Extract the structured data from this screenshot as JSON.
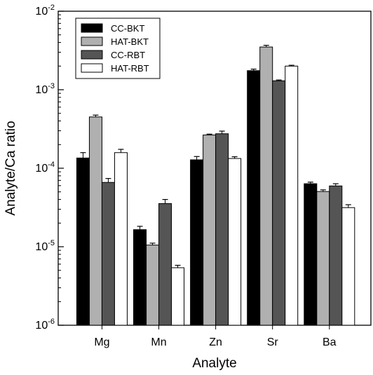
{
  "chart_data": {
    "type": "bar",
    "xlabel": "Analyte",
    "ylabel": "Analyte/Ca ratio",
    "yscale": "log",
    "ylim": [
      1e-06,
      0.01
    ],
    "y_ticks": [
      {
        "value": 1e-06,
        "base": "10",
        "exp": "-6"
      },
      {
        "value": 1e-05,
        "base": "10",
        "exp": "-5"
      },
      {
        "value": 0.0001,
        "base": "10",
        "exp": "-4"
      },
      {
        "value": 0.001,
        "base": "10",
        "exp": "-3"
      },
      {
        "value": 0.01,
        "base": "10",
        "exp": "-2"
      }
    ],
    "categories": [
      "Mg",
      "Mn",
      "Zn",
      "Sr",
      "Ba"
    ],
    "legend_position": "top-left",
    "series": [
      {
        "name": "CC-BKT",
        "color": "#000000",
        "values": [
          0.000135,
          1.65e-05,
          0.000128,
          0.00175,
          6.35e-05
        ],
        "errors": [
          2.3e-05,
          1.7e-06,
          1.3e-05,
          8e-05,
          3e-06
        ]
      },
      {
        "name": "HAT-BKT",
        "color": "#b0b0b0",
        "values": [
          0.00045,
          1.05e-05,
          0.000265,
          0.0035,
          5.05e-05
        ],
        "errors": [
          2.5e-05,
          6e-07,
          7e-06,
          0.00018,
          2.5e-06
        ]
      },
      {
        "name": "CC-RBT",
        "color": "#555555",
        "values": [
          6.6e-05,
          3.55e-05,
          0.000275,
          0.0013,
          5.95e-05
        ],
        "errors": [
          8e-06,
          4.5e-06,
          2.2e-05,
          3e-05,
          4e-06
        ]
      },
      {
        "name": "HAT-RBT",
        "color": "#ffffff",
        "values": [
          0.000158,
          5.4e-06,
          0.000133,
          0.002,
          3.15e-05
        ],
        "errors": [
          1.6e-05,
          4e-07,
          7e-06,
          5e-05,
          2.8e-06
        ]
      }
    ]
  }
}
